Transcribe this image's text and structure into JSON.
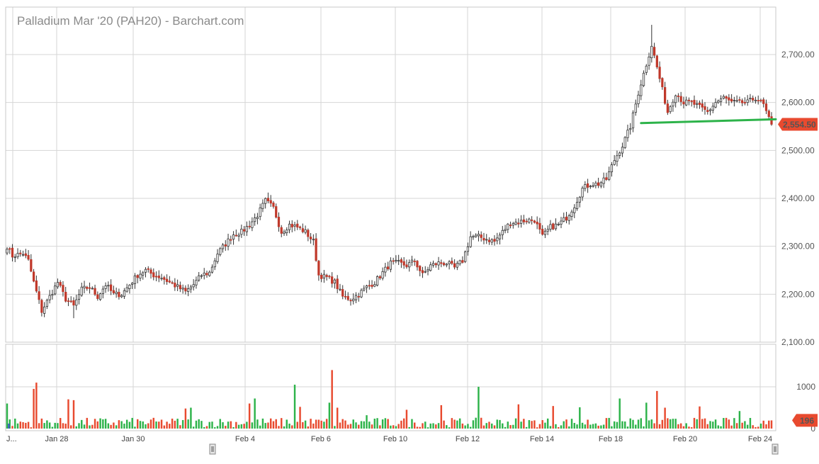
{
  "chart_data": {
    "type": "candlestick",
    "title": "Palladium Mar '20 (PAH20) - Barchart.com",
    "x_tick_labels": [
      "J...",
      "Jan 28",
      "Jan 30",
      "Feb 4",
      "Feb 6",
      "Feb 10",
      "Feb 12",
      "Feb 14",
      "Feb 18",
      "Feb 20",
      "Feb 24"
    ],
    "price": {
      "ylim": [
        2100,
        2770
      ],
      "tick_values": [
        2100,
        2200,
        2300,
        2400,
        2500,
        2600,
        2700
      ],
      "tick_labels": [
        "2,100.00",
        "2,200.00",
        "2,300.00",
        "2,400.00",
        "2,500.00",
        "2,600.00",
        "2,700.00"
      ],
      "last_price": 2554.5,
      "last_price_label": "2,554.50",
      "last_price_color": "#e84a2f",
      "up_color": "#333333",
      "down_color": "#c0392b",
      "anchors": [
        [
          0,
          2300
        ],
        [
          2,
          2280
        ],
        [
          6,
          2285
        ],
        [
          8,
          2270
        ],
        [
          10,
          2225
        ],
        [
          13,
          2165
        ],
        [
          16,
          2195
        ],
        [
          19,
          2225
        ],
        [
          22,
          2190
        ],
        [
          25,
          2175
        ],
        [
          28,
          2210
        ],
        [
          31,
          2215
        ],
        [
          34,
          2195
        ],
        [
          37,
          2220
        ],
        [
          40,
          2200
        ],
        [
          43,
          2200
        ],
        [
          46,
          2220
        ],
        [
          49,
          2240
        ],
        [
          52,
          2250
        ],
        [
          55,
          2240
        ],
        [
          58,
          2235
        ],
        [
          61,
          2225
        ],
        [
          64,
          2215
        ],
        [
          67,
          2205
        ],
        [
          70,
          2220
        ],
        [
          73,
          2240
        ],
        [
          76,
          2245
        ],
        [
          79,
          2285
        ],
        [
          82,
          2305
        ],
        [
          85,
          2325
        ],
        [
          88,
          2330
        ],
        [
          91,
          2345
        ],
        [
          94,
          2365
        ],
        [
          97,
          2395
        ],
        [
          100,
          2380
        ],
        [
          103,
          2330
        ],
        [
          106,
          2345
        ],
        [
          109,
          2340
        ],
        [
          112,
          2330
        ],
        [
          115,
          2310
        ],
        [
          117,
          2240
        ],
        [
          120,
          2235
        ],
        [
          123,
          2225
        ],
        [
          126,
          2195
        ],
        [
          129,
          2190
        ],
        [
          132,
          2200
        ],
        [
          135,
          2215
        ],
        [
          138,
          2225
        ],
        [
          141,
          2245
        ],
        [
          144,
          2265
        ],
        [
          147,
          2265
        ],
        [
          150,
          2260
        ],
        [
          153,
          2270
        ],
        [
          156,
          2240
        ],
        [
          159,
          2260
        ],
        [
          162,
          2265
        ],
        [
          165,
          2265
        ],
        [
          168,
          2255
        ],
        [
          171,
          2270
        ],
        [
          174,
          2320
        ],
        [
          177,
          2320
        ],
        [
          180,
          2315
        ],
        [
          183,
          2310
        ],
        [
          186,
          2330
        ],
        [
          189,
          2350
        ],
        [
          192,
          2350
        ],
        [
          195,
          2355
        ],
        [
          198,
          2355
        ],
        [
          201,
          2320
        ],
        [
          204,
          2340
        ],
        [
          207,
          2345
        ],
        [
          210,
          2360
        ],
        [
          213,
          2385
        ],
        [
          216,
          2420
        ],
        [
          219,
          2430
        ],
        [
          222,
          2430
        ],
        [
          225,
          2440
        ],
        [
          228,
          2480
        ],
        [
          231,
          2510
        ],
        [
          234,
          2550
        ],
        [
          237,
          2620
        ],
        [
          240,
          2680
        ],
        [
          242,
          2720
        ],
        [
          245,
          2650
        ],
        [
          248,
          2580
        ],
        [
          251,
          2620
        ],
        [
          254,
          2600
        ],
        [
          257,
          2600
        ],
        [
          260,
          2590
        ],
        [
          263,
          2580
        ],
        [
          266,
          2600
        ],
        [
          269,
          2610
        ],
        [
          272,
          2600
        ],
        [
          275,
          2600
        ],
        [
          278,
          2600
        ],
        [
          281,
          2610
        ],
        [
          284,
          2595
        ],
        [
          286,
          2565
        ],
        [
          287,
          2555
        ]
      ],
      "trendline": {
        "color": "#2db34a",
        "from": [
          238,
          2557
        ],
        "to": [
          287,
          2565
        ]
      }
    },
    "volume": {
      "ylim": [
        0,
        1000
      ],
      "tick_values": [
        0,
        1000
      ],
      "tick_labels": [
        "0",
        "1000"
      ],
      "last_volume": 196,
      "last_volume_label": "196",
      "up_color": "#2db34a",
      "down_color": "#e84a2f",
      "spikes": [
        [
          0,
          600
        ],
        [
          10,
          950
        ],
        [
          11,
          1100
        ],
        [
          23,
          700
        ],
        [
          25,
          680
        ],
        [
          67,
          480
        ],
        [
          69,
          500
        ],
        [
          91,
          600
        ],
        [
          93,
          720
        ],
        [
          108,
          1050
        ],
        [
          110,
          520
        ],
        [
          121,
          620
        ],
        [
          122,
          1400
        ],
        [
          124,
          500
        ],
        [
          135,
          320
        ],
        [
          150,
          450
        ],
        [
          163,
          560
        ],
        [
          177,
          1000
        ],
        [
          192,
          580
        ],
        [
          205,
          540
        ],
        [
          215,
          510
        ],
        [
          230,
          720
        ],
        [
          240,
          620
        ],
        [
          244,
          900
        ],
        [
          247,
          500
        ],
        [
          260,
          530
        ],
        [
          275,
          420
        ]
      ]
    },
    "grid": true,
    "legend": "none"
  }
}
